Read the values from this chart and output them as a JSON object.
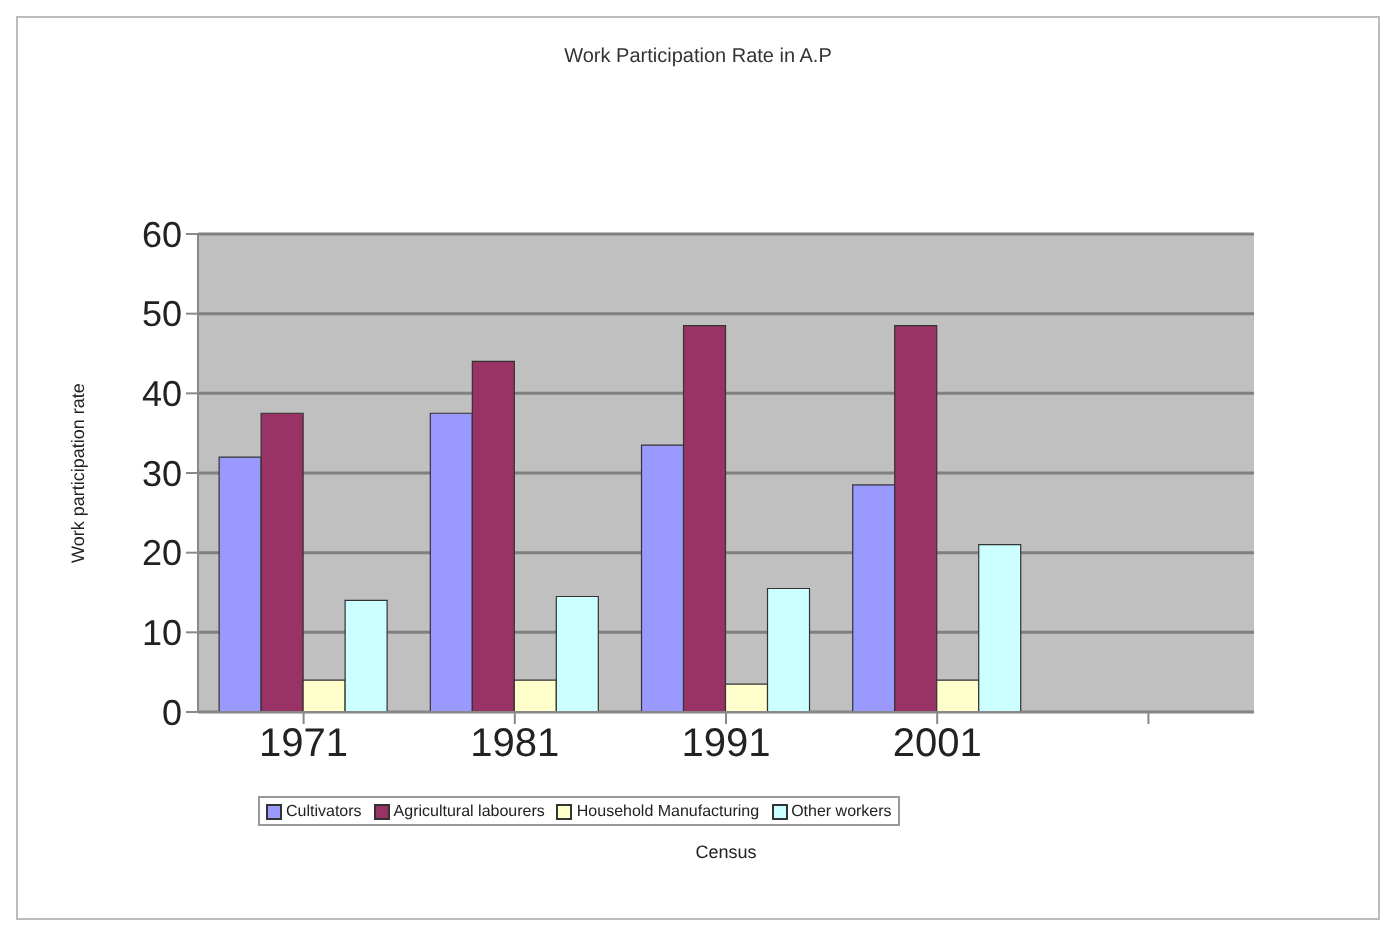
{
  "chart_data": {
    "type": "bar",
    "title": "Work Participation Rate in A.P",
    "xlabel": "Census",
    "ylabel": "Work participation rate",
    "categories": [
      "1971",
      "1981",
      "1991",
      "2001",
      null
    ],
    "series": [
      {
        "name": "Cultivators",
        "color": "#9999ff",
        "values": [
          32,
          37.5,
          33.5,
          28.5,
          null
        ]
      },
      {
        "name": "Agricultural labourers",
        "color": "#993366",
        "values": [
          37.5,
          44,
          48.5,
          48.5,
          null
        ]
      },
      {
        "name": "Household Manufacturing",
        "color": "#ffffcc",
        "values": [
          4,
          4,
          3.5,
          4,
          null
        ]
      },
      {
        "name": "Other workers",
        "color": "#ccffff",
        "values": [
          14,
          14.5,
          15.5,
          21,
          null
        ]
      }
    ],
    "ylim": [
      0,
      60
    ],
    "yticks": [
      0,
      10,
      20,
      30,
      40,
      50,
      60
    ],
    "grid": "y",
    "legend": "bottom"
  }
}
